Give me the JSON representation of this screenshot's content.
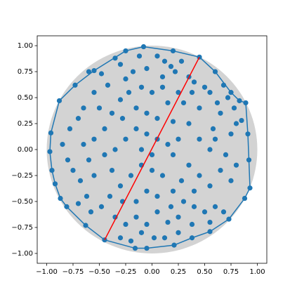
{
  "chart_data": {
    "type": "scatter",
    "xlim": [
      -1.09,
      1.09
    ],
    "ylim": [
      -1.095,
      1.095
    ],
    "xticks": [
      {
        "value": -1,
        "label": "−1.00"
      },
      {
        "value": -0.75,
        "label": "−0.75"
      },
      {
        "value": -0.5,
        "label": "−0.50"
      },
      {
        "value": -0.25,
        "label": "−0.25"
      },
      {
        "value": 0,
        "label": "0.00"
      },
      {
        "value": 0.25,
        "label": "0.25"
      },
      {
        "value": 0.5,
        "label": "0.50"
      },
      {
        "value": 0.75,
        "label": "0.75"
      },
      {
        "value": 1,
        "label": "1.00"
      }
    ],
    "yticks": [
      {
        "value": -1,
        "label": "−1.00"
      },
      {
        "value": -0.75,
        "label": "−0.75"
      },
      {
        "value": -0.5,
        "label": "−0.50"
      },
      {
        "value": -0.25,
        "label": "−0.25"
      },
      {
        "value": 0,
        "label": "0.00"
      },
      {
        "value": 0.25,
        "label": "0.25"
      },
      {
        "value": 0.5,
        "label": "0.50"
      },
      {
        "value": 0.75,
        "label": "0.75"
      },
      {
        "value": 1,
        "label": "1.00"
      }
    ],
    "circle": {
      "radius": 1,
      "color": "#d3d3d3"
    },
    "point_color": "#1f77b4",
    "hull_color": "#1f77b4",
    "line_color": "#ff0000",
    "hull": [
      [
        -0.45,
        -0.87
      ],
      [
        -0.63,
        -0.73
      ],
      [
        -0.81,
        -0.55
      ],
      [
        -0.87,
        -0.47
      ],
      [
        -0.92,
        -0.33
      ],
      [
        -0.95,
        -0.2
      ],
      [
        -0.97,
        -0.02
      ],
      [
        -0.96,
        0.16
      ],
      [
        -0.88,
        0.47
      ],
      [
        -0.73,
        0.62
      ],
      [
        -0.55,
        0.76
      ],
      [
        -0.25,
        0.95
      ],
      [
        -0.08,
        0.99
      ],
      [
        0.2,
        0.95
      ],
      [
        0.45,
        0.89
      ],
      [
        0.6,
        0.75
      ],
      [
        0.75,
        0.55
      ],
      [
        0.83,
        0.47
      ],
      [
        0.89,
        0.45
      ],
      [
        0.91,
        0.15
      ],
      [
        0.92,
        -0.1
      ],
      [
        0.93,
        -0.37
      ],
      [
        0.88,
        -0.47
      ],
      [
        0.73,
        -0.67
      ],
      [
        0.55,
        -0.79
      ],
      [
        0.38,
        -0.85
      ],
      [
        0.21,
        -0.92
      ],
      [
        -0.05,
        -0.95
      ],
      [
        -0.16,
        -0.95
      ],
      [
        -0.45,
        -0.87
      ]
    ],
    "line": [
      [
        -0.45,
        -0.87
      ],
      [
        0.45,
        0.89
      ]
    ],
    "points": [
      [
        -0.45,
        -0.87
      ],
      [
        -0.63,
        -0.73
      ],
      [
        -0.81,
        -0.55
      ],
      [
        -0.87,
        -0.47
      ],
      [
        -0.92,
        -0.33
      ],
      [
        -0.95,
        -0.2
      ],
      [
        -0.97,
        -0.02
      ],
      [
        -0.96,
        0.16
      ],
      [
        -0.88,
        0.47
      ],
      [
        -0.73,
        0.62
      ],
      [
        -0.55,
        0.76
      ],
      [
        -0.25,
        0.95
      ],
      [
        -0.08,
        0.99
      ],
      [
        0.2,
        0.95
      ],
      [
        0.45,
        0.89
      ],
      [
        0.6,
        0.75
      ],
      [
        0.75,
        0.55
      ],
      [
        0.83,
        0.47
      ],
      [
        0.89,
        0.45
      ],
      [
        0.91,
        0.15
      ],
      [
        0.92,
        -0.1
      ],
      [
        0.93,
        -0.37
      ],
      [
        0.88,
        -0.47
      ],
      [
        0.73,
        -0.67
      ],
      [
        0.55,
        -0.79
      ],
      [
        0.38,
        -0.85
      ],
      [
        0.21,
        -0.92
      ],
      [
        -0.05,
        -0.95
      ],
      [
        -0.16,
        -0.95
      ],
      [
        -0.6,
        0.75
      ],
      [
        -0.48,
        0.73
      ],
      [
        -0.35,
        0.88
      ],
      [
        -0.3,
        0.82
      ],
      [
        -0.18,
        0.75
      ],
      [
        -0.12,
        0.9
      ],
      [
        -0.05,
        0.78
      ],
      [
        0.05,
        0.9
      ],
      [
        0.12,
        0.85
      ],
      [
        0.18,
        0.8
      ],
      [
        0.22,
        0.75
      ],
      [
        0.28,
        0.85
      ],
      [
        0.35,
        0.7
      ],
      [
        0.4,
        0.65
      ],
      [
        0.5,
        0.6
      ],
      [
        0.55,
        0.55
      ],
      [
        0.62,
        0.45
      ],
      [
        0.68,
        0.62
      ],
      [
        0.72,
        0.5
      ],
      [
        0.78,
        0.4
      ],
      [
        0.8,
        0.25
      ],
      [
        0.85,
        0.28
      ],
      [
        0.75,
        0.15
      ],
      [
        0.65,
        0.35
      ],
      [
        0.58,
        0.2
      ],
      [
        0.45,
        0.4
      ],
      [
        0.3,
        0.45
      ],
      [
        0.25,
        0.55
      ],
      [
        0.1,
        0.6
      ],
      [
        0.0,
        0.55
      ],
      [
        -0.1,
        0.6
      ],
      [
        -0.22,
        0.55
      ],
      [
        -0.3,
        0.48
      ],
      [
        -0.42,
        0.62
      ],
      [
        -0.55,
        0.55
      ],
      [
        -0.65,
        0.4
      ],
      [
        -0.7,
        0.3
      ],
      [
        -0.78,
        0.2
      ],
      [
        -0.85,
        0.05
      ],
      [
        -0.8,
        -0.1
      ],
      [
        -0.75,
        -0.2
      ],
      [
        -0.68,
        -0.3
      ],
      [
        -0.6,
        -0.1
      ],
      [
        -0.55,
        0.1
      ],
      [
        -0.45,
        0.2
      ],
      [
        -0.38,
        0.35
      ],
      [
        -0.28,
        0.3
      ],
      [
        -0.15,
        0.4
      ],
      [
        -0.05,
        0.35
      ],
      [
        0.05,
        0.3
      ],
      [
        0.15,
        0.45
      ],
      [
        0.2,
        0.27
      ],
      [
        0.35,
        0.25
      ],
      [
        0.45,
        0.1
      ],
      [
        0.55,
        0.0
      ],
      [
        0.7,
        -0.05
      ],
      [
        0.8,
        -0.15
      ],
      [
        0.75,
        -0.3
      ],
      [
        0.65,
        -0.2
      ],
      [
        0.55,
        -0.35
      ],
      [
        0.45,
        -0.25
      ],
      [
        0.35,
        -0.15
      ],
      [
        0.2,
        -0.05
      ],
      [
        0.15,
        0.05
      ],
      [
        0.05,
        0.1
      ],
      [
        -0.05,
        0.15
      ],
      [
        -0.15,
        0.2
      ],
      [
        -0.25,
        0.1
      ],
      [
        -0.35,
        0.0
      ],
      [
        -0.45,
        -0.05
      ],
      [
        -0.55,
        -0.25
      ],
      [
        -0.62,
        -0.45
      ],
      [
        -0.7,
        -0.52
      ],
      [
        -0.58,
        -0.6
      ],
      [
        -0.48,
        -0.55
      ],
      [
        -0.4,
        -0.45
      ],
      [
        -0.3,
        -0.35
      ],
      [
        -0.2,
        -0.25
      ],
      [
        -0.1,
        -0.15
      ],
      [
        0.0,
        -0.05
      ],
      [
        0.1,
        -0.25
      ],
      [
        0.2,
        -0.4
      ],
      [
        0.3,
        -0.5
      ],
      [
        0.4,
        -0.55
      ],
      [
        0.5,
        -0.6
      ],
      [
        0.6,
        -0.55
      ],
      [
        0.68,
        -0.6
      ],
      [
        0.55,
        -0.7
      ],
      [
        0.38,
        -0.72
      ],
      [
        0.25,
        -0.65
      ],
      [
        0.15,
        -0.7
      ],
      [
        0.05,
        -0.6
      ],
      [
        -0.05,
        -0.72
      ],
      [
        -0.15,
        -0.65
      ],
      [
        -0.25,
        -0.72
      ],
      [
        -0.35,
        -0.65
      ],
      [
        -0.3,
        -0.85
      ],
      [
        -0.2,
        -0.88
      ],
      [
        -0.1,
        -0.8
      ],
      [
        0.02,
        -0.85
      ],
      [
        0.12,
        -0.85
      ],
      [
        0.25,
        -0.8
      ],
      [
        -0.15,
        -0.5
      ],
      [
        -0.05,
        -0.4
      ],
      [
        0.05,
        -0.45
      ],
      [
        0.18,
        -0.55
      ],
      [
        0.28,
        -0.3
      ],
      [
        0.4,
        -0.4
      ],
      [
        -0.38,
        -0.2
      ],
      [
        -0.28,
        -0.5
      ],
      [
        0.1,
        0.7
      ],
      [
        -0.25,
        0.68
      ],
      [
        0.38,
        0.55
      ],
      [
        0.6,
        0.1
      ],
      [
        -0.65,
        0.05
      ],
      [
        -0.5,
        0.4
      ],
      [
        0.0,
        -0.2
      ],
      [
        0.25,
        0.1
      ],
      [
        -0.1,
        0.0
      ]
    ]
  }
}
